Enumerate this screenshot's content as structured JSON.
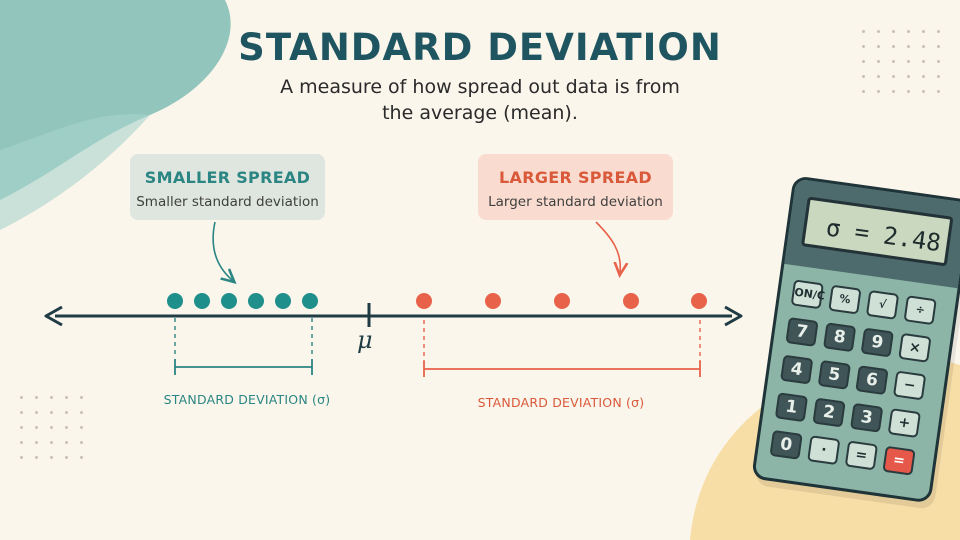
{
  "title": "STANDARD DEVIATION",
  "subtitle": "A measure of how spread out data is from the average (mean).",
  "left_callout": {
    "heading": "SMALLER SPREAD",
    "description": "Smaller standard deviation"
  },
  "right_callout": {
    "heading": "LARGER SPREAD",
    "description": "Larger standard deviation"
  },
  "mean_symbol": "μ",
  "sd_label_small": "STANDARD DEVIATION (σ)",
  "sd_label_large": "STANDARD DEVIATION (σ)",
  "calculator": {
    "display": "σ = 2.48",
    "keys": [
      "ON/C",
      "%",
      "√",
      "÷",
      "7",
      "8",
      "9",
      "×",
      "4",
      "5",
      "6",
      "−",
      "1",
      "2",
      "3",
      "+",
      "0",
      "·",
      "=",
      "="
    ]
  },
  "colors": {
    "teal": "#2a8583",
    "coral": "#e8624a",
    "navy": "#1f3c45",
    "background": "#fbf6ec"
  },
  "groups": {
    "small_spread_points": 6,
    "large_spread_points": 5
  }
}
